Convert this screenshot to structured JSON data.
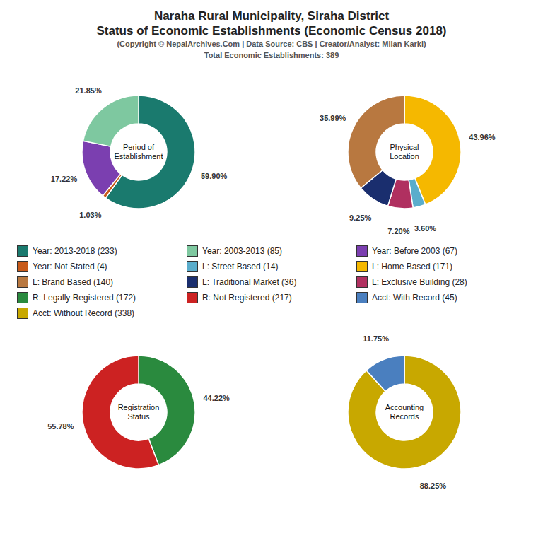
{
  "title": [
    "Naraha Rural Municipality, Siraha District",
    "Status of Economic Establishments (Economic Census 2018)"
  ],
  "subtitle": [
    "(Copyright © NepalArchives.Com | Data Source: CBS | Creator/Analyst: Milan Karki)",
    "Total Economic Establishments: 389"
  ],
  "legend_entries": [
    "Year: 2013-2018 (233)",
    "Year: 2003-2013 (85)",
    "Year: Before 2003 (67)",
    "Year: Not Stated (4)",
    "L: Street Based (14)",
    "L: Home Based (171)",
    "L: Brand Based (140)",
    "L: Traditional Market (36)",
    "L: Exclusive Building (28)",
    "R: Legally Registered (172)",
    "R: Not Registered (217)",
    "Acct: With Record (45)",
    "Acct: Without Record (338)"
  ],
  "chart_data": [
    {
      "type": "pie",
      "title": "Period of\nEstablishment",
      "categories": [
        "Year: 2013-2018 (233)",
        "Year: Not Stated (4)",
        "Year: Before 2003 (67)",
        "Year: 2003-2013 (85)"
      ],
      "values": [
        59.9,
        1.03,
        17.22,
        21.85
      ],
      "value_labels": [
        "59.90%",
        "1.03%",
        "17.22%",
        "21.85%"
      ],
      "colors": [
        "#1a7a6e",
        "#c85a1a",
        "#7b3fb0",
        "#7ec8a0"
      ],
      "data_labels": true
    },
    {
      "type": "pie",
      "title": "Physical\nLocation",
      "categories": [
        "L: Home Based (171)",
        "L: Street Based (14)",
        "L: Exclusive Building (28)",
        "L: Traditional Market (36)",
        "L: Brand Based (140)"
      ],
      "values": [
        43.96,
        3.6,
        7.2,
        9.25,
        35.99
      ],
      "value_labels": [
        "43.96%",
        "3.60%",
        "7.20%",
        "9.25%",
        "35.99%"
      ],
      "colors": [
        "#f5b800",
        "#5aadcc",
        "#b03060",
        "#1a2e6e",
        "#b87840"
      ],
      "data_labels": true
    },
    {
      "type": "pie",
      "title": "Registration\nStatus",
      "categories": [
        "R: Legally Registered (172)",
        "R: Not Registered (217)"
      ],
      "values": [
        44.22,
        55.78
      ],
      "value_labels": [
        "44.22%",
        "55.78%"
      ],
      "colors": [
        "#2a8a3e",
        "#cc2222"
      ],
      "data_labels": true
    },
    {
      "type": "pie",
      "title": "Accounting\nRecords",
      "categories": [
        "Acct: Without Record (338)",
        "Acct: With Record (45)"
      ],
      "values": [
        88.25,
        11.75
      ],
      "value_labels": [
        "88.25%",
        "11.75%"
      ],
      "colors": [
        "#c8a800",
        "#4a7fbf"
      ],
      "data_labels": true
    }
  ]
}
